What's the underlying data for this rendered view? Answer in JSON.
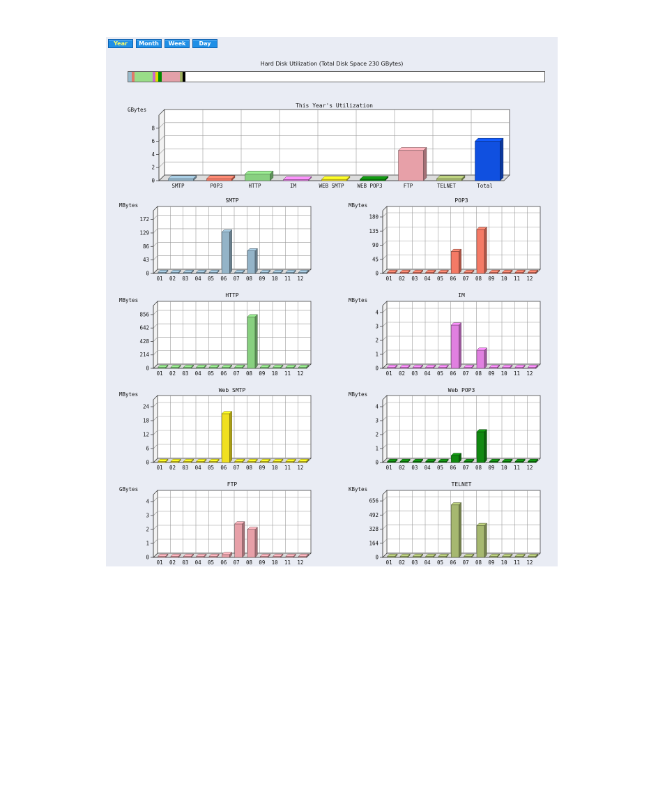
{
  "tabs": [
    "Year",
    "Month",
    "Week",
    "Day"
  ],
  "active_tab": "Year",
  "disk": {
    "title": "Hard Disk Utilization (Total Disk Space 230 GBytes)",
    "segments": [
      {
        "color": "#99bbcc",
        "fraction": 0.004
      },
      {
        "color": "#e07a6a",
        "fraction": 0.003
      },
      {
        "color": "#99dd88",
        "fraction": 0.02
      },
      {
        "color": "#cc66cc",
        "fraction": 0.003
      },
      {
        "color": "#dddd00",
        "fraction": 0.003
      },
      {
        "color": "#008800",
        "fraction": 0.004
      },
      {
        "color": "#e3a0a8",
        "fraction": 0.02
      },
      {
        "color": "#a0b060",
        "fraction": 0.003
      },
      {
        "color": "#000000",
        "fraction": 0.003
      }
    ]
  },
  "chart_data": [
    {
      "id": "year",
      "type": "bar",
      "title": "This Year's Utilization",
      "ylabel": "GBytes",
      "ylim": [
        0,
        10
      ],
      "yticks": [
        "0",
        "2",
        "4",
        "6",
        "8"
      ],
      "categories": [
        "SMTP",
        "POP3",
        "HTTP",
        "IM",
        "WEB SMTP",
        "WEB POP3",
        "FTP",
        "TELNET",
        "Total"
      ],
      "values": [
        0.3,
        0.3,
        1.0,
        0.1,
        0.2,
        0.2,
        4.6,
        0.3,
        6.0
      ],
      "colors": [
        "#94b4c8",
        "#f47a66",
        "#88d080",
        "#e080e0",
        "#f0e020",
        "#108810",
        "#e7a0a8",
        "#a6b870",
        "#1050e0"
      ]
    },
    {
      "id": "smtp",
      "type": "bar",
      "title": "SMTP",
      "ylabel": "MBytes",
      "ylim": [
        0,
        200
      ],
      "yticks": [
        "0",
        "43",
        "86",
        "129",
        "172"
      ],
      "categories": [
        "01",
        "02",
        "03",
        "04",
        "05",
        "06",
        "07",
        "08",
        "09",
        "10",
        "11",
        "12"
      ],
      "values": [
        0.8,
        0.8,
        0.8,
        0.8,
        0.8,
        132,
        0.8,
        72,
        0.8,
        0.8,
        0.8,
        0.8
      ],
      "color": "#94b4c8"
    },
    {
      "id": "pop3",
      "type": "bar",
      "title": "POP3",
      "ylabel": "MBytes",
      "ylim": [
        0,
        200
      ],
      "yticks": [
        "0",
        "45",
        "90",
        "135",
        "180"
      ],
      "categories": [
        "01",
        "02",
        "03",
        "04",
        "05",
        "06",
        "07",
        "08",
        "09",
        "10",
        "11",
        "12"
      ],
      "values": [
        0.8,
        0.8,
        0.8,
        0.8,
        0.8,
        70,
        0.8,
        140,
        0.8,
        0.8,
        0.8,
        0.8
      ],
      "color": "#f47a66"
    },
    {
      "id": "http",
      "type": "bar",
      "title": "HTTP",
      "ylabel": "MBytes",
      "ylim": [
        0,
        1000
      ],
      "yticks": [
        "0",
        "214",
        "428",
        "642",
        "856"
      ],
      "categories": [
        "01",
        "02",
        "03",
        "04",
        "05",
        "06",
        "07",
        "08",
        "09",
        "10",
        "11",
        "12"
      ],
      "values": [
        5,
        5,
        5,
        5,
        5,
        5,
        5,
        820,
        5,
        5,
        5,
        5
      ],
      "color": "#88d080"
    },
    {
      "id": "im",
      "type": "bar",
      "title": "IM",
      "ylabel": "MBytes",
      "ylim": [
        0,
        4.5
      ],
      "yticks": [
        "0",
        "1",
        "2",
        "3",
        "4"
      ],
      "categories": [
        "01",
        "02",
        "03",
        "04",
        "05",
        "06",
        "07",
        "08",
        "09",
        "10",
        "11",
        "12"
      ],
      "values": [
        0.02,
        0.02,
        0.02,
        0.02,
        0.02,
        3.1,
        0.02,
        1.3,
        0.02,
        0.02,
        0.02,
        0.02
      ],
      "color": "#e080e0"
    },
    {
      "id": "websmtp",
      "type": "bar",
      "title": "Web SMTP",
      "ylabel": "MBytes",
      "ylim": [
        0,
        27
      ],
      "yticks": [
        "0",
        "6",
        "12",
        "18",
        "24"
      ],
      "categories": [
        "01",
        "02",
        "03",
        "04",
        "05",
        "06",
        "07",
        "08",
        "09",
        "10",
        "11",
        "12"
      ],
      "values": [
        0.3,
        0.3,
        0.3,
        0.3,
        0.3,
        21,
        0.3,
        0.3,
        0.3,
        0.3,
        0.3,
        0.3
      ],
      "color": "#f0e020"
    },
    {
      "id": "webpop3",
      "type": "bar",
      "title": "Web POP3",
      "ylabel": "MBytes",
      "ylim": [
        0,
        4.5
      ],
      "yticks": [
        "0",
        "1",
        "2",
        "3",
        "4"
      ],
      "categories": [
        "01",
        "02",
        "03",
        "04",
        "05",
        "06",
        "07",
        "08",
        "09",
        "10",
        "11",
        "12"
      ],
      "values": [
        0.05,
        0.05,
        0.05,
        0.05,
        0.05,
        0.5,
        0.05,
        2.2,
        0.05,
        0.05,
        0.05,
        0.05
      ],
      "color": "#108810"
    },
    {
      "id": "ftp",
      "type": "bar",
      "title": "FTP",
      "ylabel": "GBytes",
      "ylim": [
        0,
        4.5
      ],
      "yticks": [
        "0",
        "1",
        "2",
        "3",
        "4"
      ],
      "categories": [
        "01",
        "02",
        "03",
        "04",
        "05",
        "06",
        "07",
        "08",
        "09",
        "10",
        "11",
        "12"
      ],
      "values": [
        0.02,
        0.02,
        0.02,
        0.02,
        0.02,
        0.2,
        2.4,
        2.0,
        0.02,
        0.02,
        0.02,
        0.02
      ],
      "color": "#e7a0a8"
    },
    {
      "id": "telnet",
      "type": "bar",
      "title": "TELNET",
      "ylabel": "KBytes",
      "ylim": [
        0,
        730
      ],
      "yticks": [
        "0",
        "164",
        "328",
        "492",
        "656"
      ],
      "categories": [
        "01",
        "02",
        "03",
        "04",
        "05",
        "06",
        "07",
        "08",
        "09",
        "10",
        "11",
        "12"
      ],
      "values": [
        3,
        3,
        3,
        3,
        3,
        610,
        3,
        370,
        3,
        3,
        3,
        3
      ],
      "color": "#a6b870"
    }
  ]
}
